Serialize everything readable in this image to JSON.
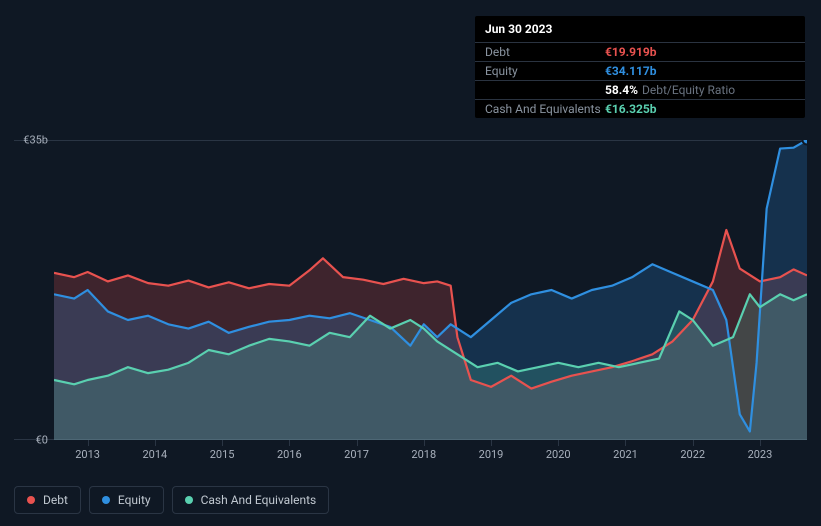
{
  "tooltip": {
    "date": "Jun 30 2023",
    "rows": [
      {
        "label": "Debt",
        "value": "€19.919b",
        "color": "#e8524f"
      },
      {
        "label": "Equity",
        "value": "€34.117b",
        "color": "#2f8fe0"
      },
      {
        "label": "",
        "value": "58.4%",
        "suffix": "Debt/Equity Ratio",
        "color": "#ffffff"
      },
      {
        "label": "Cash And Equivalents",
        "value": "€16.325b",
        "color": "#5ad0b0"
      }
    ]
  },
  "chart": {
    "type": "area",
    "background": "#0f1824",
    "grid_color": "#2a3544",
    "ylim": [
      0,
      35
    ],
    "yticks": [
      {
        "v": 0,
        "label": "€0"
      },
      {
        "v": 35,
        "label": "€35b"
      }
    ],
    "xlabels": [
      "2013",
      "2014",
      "2015",
      "2016",
      "2017",
      "2018",
      "2019",
      "2020",
      "2021",
      "2022",
      "2023"
    ],
    "x_domain": [
      2012.5,
      2023.7
    ],
    "series": [
      {
        "name": "Debt",
        "color": "#e8524f",
        "fill_opacity": 0.22,
        "points": [
          [
            2012.5,
            19.5
          ],
          [
            2012.8,
            19.0
          ],
          [
            2013.0,
            19.6
          ],
          [
            2013.3,
            18.5
          ],
          [
            2013.6,
            19.2
          ],
          [
            2013.9,
            18.3
          ],
          [
            2014.2,
            18.0
          ],
          [
            2014.5,
            18.6
          ],
          [
            2014.8,
            17.8
          ],
          [
            2015.1,
            18.4
          ],
          [
            2015.4,
            17.7
          ],
          [
            2015.7,
            18.2
          ],
          [
            2016.0,
            18.0
          ],
          [
            2016.3,
            19.8
          ],
          [
            2016.5,
            21.2
          ],
          [
            2016.8,
            19.0
          ],
          [
            2017.1,
            18.7
          ],
          [
            2017.4,
            18.2
          ],
          [
            2017.7,
            18.8
          ],
          [
            2018.0,
            18.3
          ],
          [
            2018.2,
            18.5
          ],
          [
            2018.4,
            18.0
          ],
          [
            2018.5,
            12.0
          ],
          [
            2018.7,
            7.0
          ],
          [
            2019.0,
            6.2
          ],
          [
            2019.3,
            7.5
          ],
          [
            2019.6,
            6.0
          ],
          [
            2019.9,
            6.8
          ],
          [
            2020.2,
            7.5
          ],
          [
            2020.5,
            8.0
          ],
          [
            2020.8,
            8.5
          ],
          [
            2021.1,
            9.2
          ],
          [
            2021.4,
            10.0
          ],
          [
            2021.7,
            11.5
          ],
          [
            2022.0,
            14.0
          ],
          [
            2022.3,
            18.5
          ],
          [
            2022.5,
            24.5
          ],
          [
            2022.7,
            20.0
          ],
          [
            2023.0,
            18.5
          ],
          [
            2023.3,
            19.0
          ],
          [
            2023.5,
            19.9
          ],
          [
            2023.7,
            19.2
          ]
        ]
      },
      {
        "name": "Equity",
        "color": "#2f8fe0",
        "fill_opacity": 0.22,
        "points": [
          [
            2012.5,
            17.0
          ],
          [
            2012.8,
            16.5
          ],
          [
            2013.0,
            17.5
          ],
          [
            2013.3,
            15.0
          ],
          [
            2013.6,
            14.0
          ],
          [
            2013.9,
            14.5
          ],
          [
            2014.2,
            13.5
          ],
          [
            2014.5,
            13.0
          ],
          [
            2014.8,
            13.8
          ],
          [
            2015.1,
            12.5
          ],
          [
            2015.4,
            13.2
          ],
          [
            2015.7,
            13.8
          ],
          [
            2016.0,
            14.0
          ],
          [
            2016.3,
            14.5
          ],
          [
            2016.6,
            14.2
          ],
          [
            2016.9,
            14.8
          ],
          [
            2017.2,
            14.0
          ],
          [
            2017.5,
            13.2
          ],
          [
            2017.8,
            11.0
          ],
          [
            2018.0,
            13.5
          ],
          [
            2018.2,
            12.0
          ],
          [
            2018.4,
            13.5
          ],
          [
            2018.7,
            12.0
          ],
          [
            2019.0,
            14.0
          ],
          [
            2019.3,
            16.0
          ],
          [
            2019.6,
            17.0
          ],
          [
            2019.9,
            17.5
          ],
          [
            2020.2,
            16.5
          ],
          [
            2020.5,
            17.5
          ],
          [
            2020.8,
            18.0
          ],
          [
            2021.1,
            19.0
          ],
          [
            2021.4,
            20.5
          ],
          [
            2021.7,
            19.5
          ],
          [
            2022.0,
            18.5
          ],
          [
            2022.3,
            17.5
          ],
          [
            2022.5,
            14.0
          ],
          [
            2022.7,
            3.0
          ],
          [
            2022.85,
            1.0
          ],
          [
            2022.95,
            9.0
          ],
          [
            2023.1,
            27.0
          ],
          [
            2023.3,
            34.0
          ],
          [
            2023.5,
            34.1
          ],
          [
            2023.7,
            35.0
          ]
        ]
      },
      {
        "name": "Cash And Equivalents",
        "color": "#5ad0b0",
        "fill_opacity": 0.2,
        "points": [
          [
            2012.5,
            7.0
          ],
          [
            2012.8,
            6.5
          ],
          [
            2013.0,
            7.0
          ],
          [
            2013.3,
            7.5
          ],
          [
            2013.6,
            8.5
          ],
          [
            2013.9,
            7.8
          ],
          [
            2014.2,
            8.2
          ],
          [
            2014.5,
            9.0
          ],
          [
            2014.8,
            10.5
          ],
          [
            2015.1,
            10.0
          ],
          [
            2015.4,
            11.0
          ],
          [
            2015.7,
            11.8
          ],
          [
            2016.0,
            11.5
          ],
          [
            2016.3,
            11.0
          ],
          [
            2016.6,
            12.5
          ],
          [
            2016.9,
            12.0
          ],
          [
            2017.2,
            14.5
          ],
          [
            2017.5,
            13.0
          ],
          [
            2017.8,
            14.0
          ],
          [
            2018.0,
            13.0
          ],
          [
            2018.2,
            11.5
          ],
          [
            2018.5,
            10.0
          ],
          [
            2018.8,
            8.5
          ],
          [
            2019.1,
            9.0
          ],
          [
            2019.4,
            8.0
          ],
          [
            2019.7,
            8.5
          ],
          [
            2020.0,
            9.0
          ],
          [
            2020.3,
            8.5
          ],
          [
            2020.6,
            9.0
          ],
          [
            2020.9,
            8.5
          ],
          [
            2021.2,
            9.0
          ],
          [
            2021.5,
            9.5
          ],
          [
            2021.8,
            15.0
          ],
          [
            2022.0,
            14.0
          ],
          [
            2022.3,
            11.0
          ],
          [
            2022.6,
            12.0
          ],
          [
            2022.85,
            17.0
          ],
          [
            2023.0,
            15.5
          ],
          [
            2023.3,
            17.0
          ],
          [
            2023.5,
            16.3
          ],
          [
            2023.7,
            17.0
          ]
        ]
      }
    ],
    "marker_x": 2023.7,
    "marker_series": "Equity"
  },
  "legend": [
    {
      "name": "Debt",
      "color": "#e8524f"
    },
    {
      "name": "Equity",
      "color": "#2f8fe0"
    },
    {
      "name": "Cash And Equivalents",
      "color": "#5ad0b0"
    }
  ]
}
